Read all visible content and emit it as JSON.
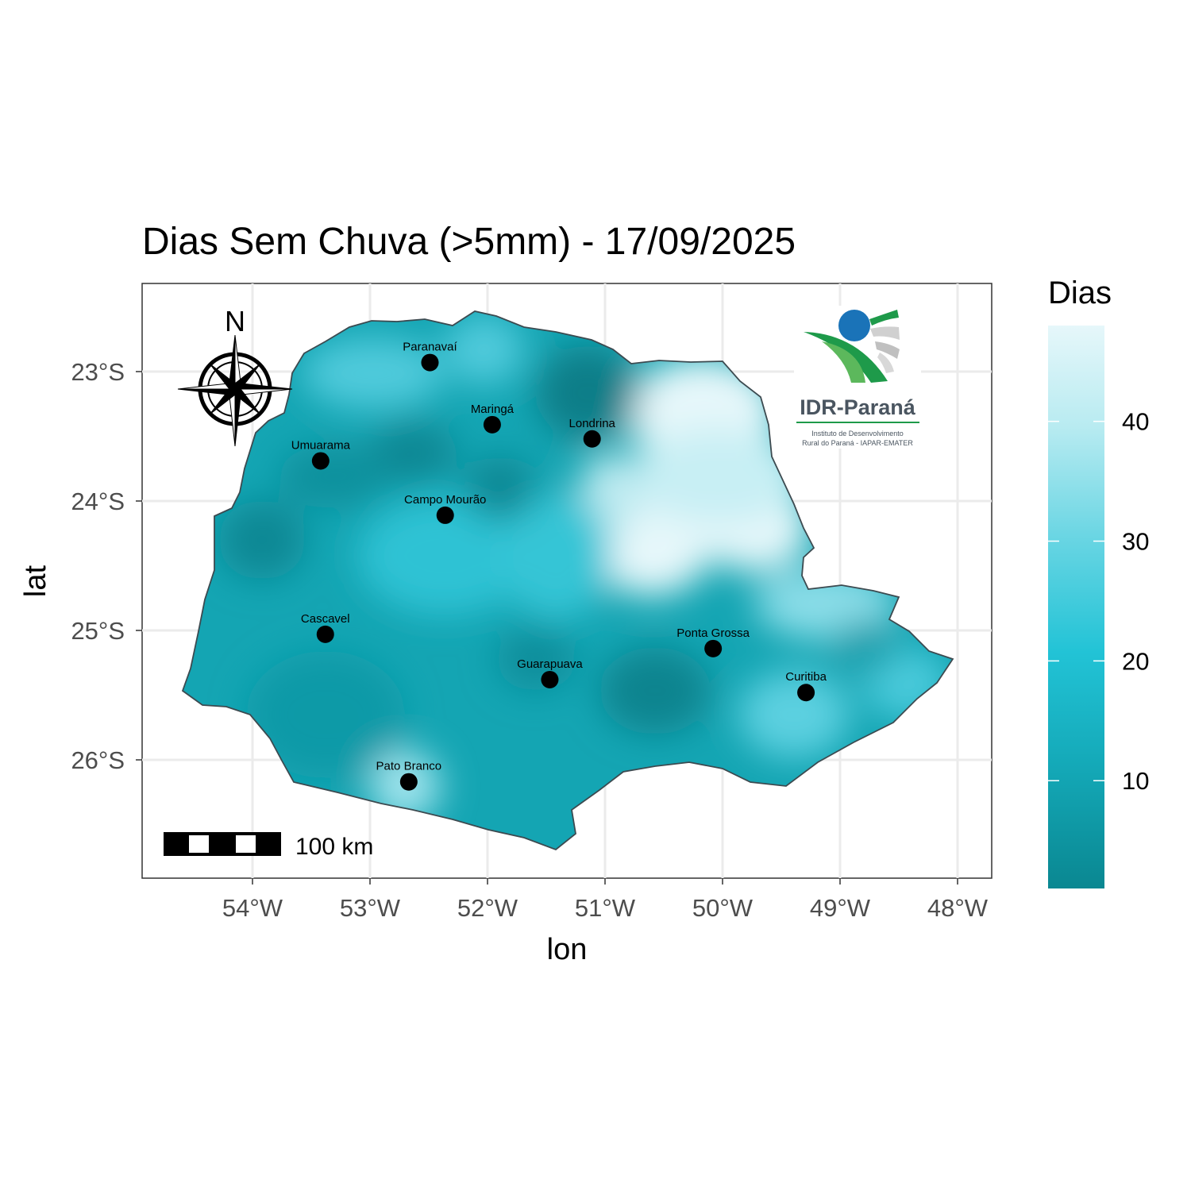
{
  "title": "Dias Sem Chuva (>5mm) -  17/09/2025",
  "x_axis": {
    "title": "lon",
    "ticks": [
      {
        "value": -54,
        "label": "54°W"
      },
      {
        "value": -53,
        "label": "53°W"
      },
      {
        "value": -52,
        "label": "52°W"
      },
      {
        "value": -51,
        "label": "51°W"
      },
      {
        "value": -50,
        "label": "50°W"
      },
      {
        "value": -49,
        "label": "49°W"
      },
      {
        "value": -48,
        "label": "48°W"
      }
    ]
  },
  "y_axis": {
    "title": "lat",
    "ticks": [
      {
        "value": -23,
        "label": "23°S"
      },
      {
        "value": -24,
        "label": "24°S"
      },
      {
        "value": -25,
        "label": "25°S"
      },
      {
        "value": -26,
        "label": "26°S"
      }
    ]
  },
  "legend": {
    "title": "Dias",
    "ticks": [
      {
        "value": 10,
        "label": "10"
      },
      {
        "value": 20,
        "label": "20"
      },
      {
        "value": 30,
        "label": "30"
      },
      {
        "value": 40,
        "label": "40"
      }
    ],
    "colors": [
      "#0a8791",
      "#14a9b8",
      "#22c3d6",
      "#68d5e3",
      "#b8ebf1",
      "#e6f7fa"
    ]
  },
  "cities": [
    {
      "name": "Paranavaí",
      "lon": -52.49,
      "lat": -22.93
    },
    {
      "name": "Maringá",
      "lon": -51.96,
      "lat": -23.41
    },
    {
      "name": "Londrina",
      "lon": -51.11,
      "lat": -23.52
    },
    {
      "name": "Umuarama",
      "lon": -53.42,
      "lat": -23.69
    },
    {
      "name": "Campo Mourão",
      "lon": -52.36,
      "lat": -24.11
    },
    {
      "name": "Cascavel",
      "lon": -53.38,
      "lat": -25.03
    },
    {
      "name": "Ponta Grossa",
      "lon": -50.08,
      "lat": -25.14
    },
    {
      "name": "Guarapuava",
      "lon": -51.47,
      "lat": -25.38
    },
    {
      "name": "Curitiba",
      "lon": -49.29,
      "lat": -25.48
    },
    {
      "name": "Pato Branco",
      "lon": -52.67,
      "lat": -26.17
    }
  ],
  "north_arrow": {
    "label": "N",
    "icon": "compass-rose-icon"
  },
  "scale_bar": {
    "label": "100 km"
  },
  "logo": {
    "name": "IDR-Paraná",
    "subtitle_line1": "Instituto de Desenvolvimento",
    "subtitle_line2": "Rural do Paraná - IAPAR-EMATER",
    "colors": {
      "blue": "#1a73b8",
      "green": "#1e9a4a",
      "gray": "#c8c8c8",
      "text": "#4a5560"
    }
  },
  "chart_data": {
    "type": "heatmap",
    "title": "Dias Sem Chuva (>5mm) -  17/09/2025",
    "xlabel": "lon",
    "ylabel": "lat",
    "xlim": [
      -54.95,
      -47.7
    ],
    "ylim": [
      -26.92,
      -22.35
    ],
    "legend_title": "Dias",
    "value_range": [
      1,
      48
    ],
    "legend_position": "right",
    "grid": true,
    "hotspots": [
      {
        "lon": -50.6,
        "lat": -24.4,
        "value": 44,
        "note": "high"
      },
      {
        "lon": -50.0,
        "lat": -23.4,
        "value": 46,
        "note": "high"
      },
      {
        "lon": -49.8,
        "lat": -24.3,
        "value": 44,
        "note": "high"
      },
      {
        "lon": -51.4,
        "lat": -23.2,
        "value": 3,
        "note": "low"
      },
      {
        "lon": -52.2,
        "lat": -23.9,
        "value": 6,
        "note": "low"
      },
      {
        "lon": -53.9,
        "lat": -24.3,
        "value": 6,
        "note": "low"
      },
      {
        "lon": -50.5,
        "lat": -25.5,
        "value": 5,
        "note": "low"
      },
      {
        "lon": -52.5,
        "lat": -26.1,
        "value": 30,
        "note": "high"
      }
    ]
  }
}
